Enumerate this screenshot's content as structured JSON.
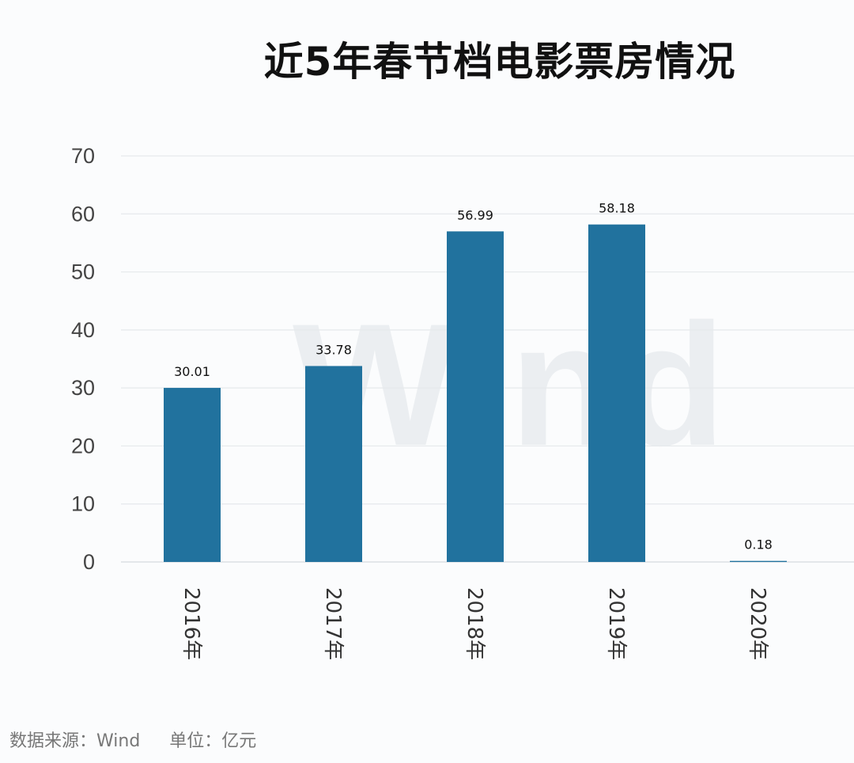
{
  "chart_data": {
    "type": "bar",
    "title": "近5年春节档电影票房情况",
    "categories": [
      "2016年",
      "2017年",
      "2018年",
      "2019年",
      "2020年"
    ],
    "values": [
      30.01,
      33.78,
      56.99,
      58.18,
      0.18
    ],
    "value_labels": [
      "30.01",
      "33.78",
      "56.99",
      "58.18",
      "0.18"
    ],
    "ylim": [
      0,
      70
    ],
    "yticks": [
      0,
      10,
      20,
      30,
      40,
      50,
      60,
      70
    ],
    "grid": true,
    "bar_color": "#21729e",
    "watermark": "Wind"
  },
  "footer": {
    "source": "数据来源：Wind",
    "unit": "单位：亿元"
  }
}
